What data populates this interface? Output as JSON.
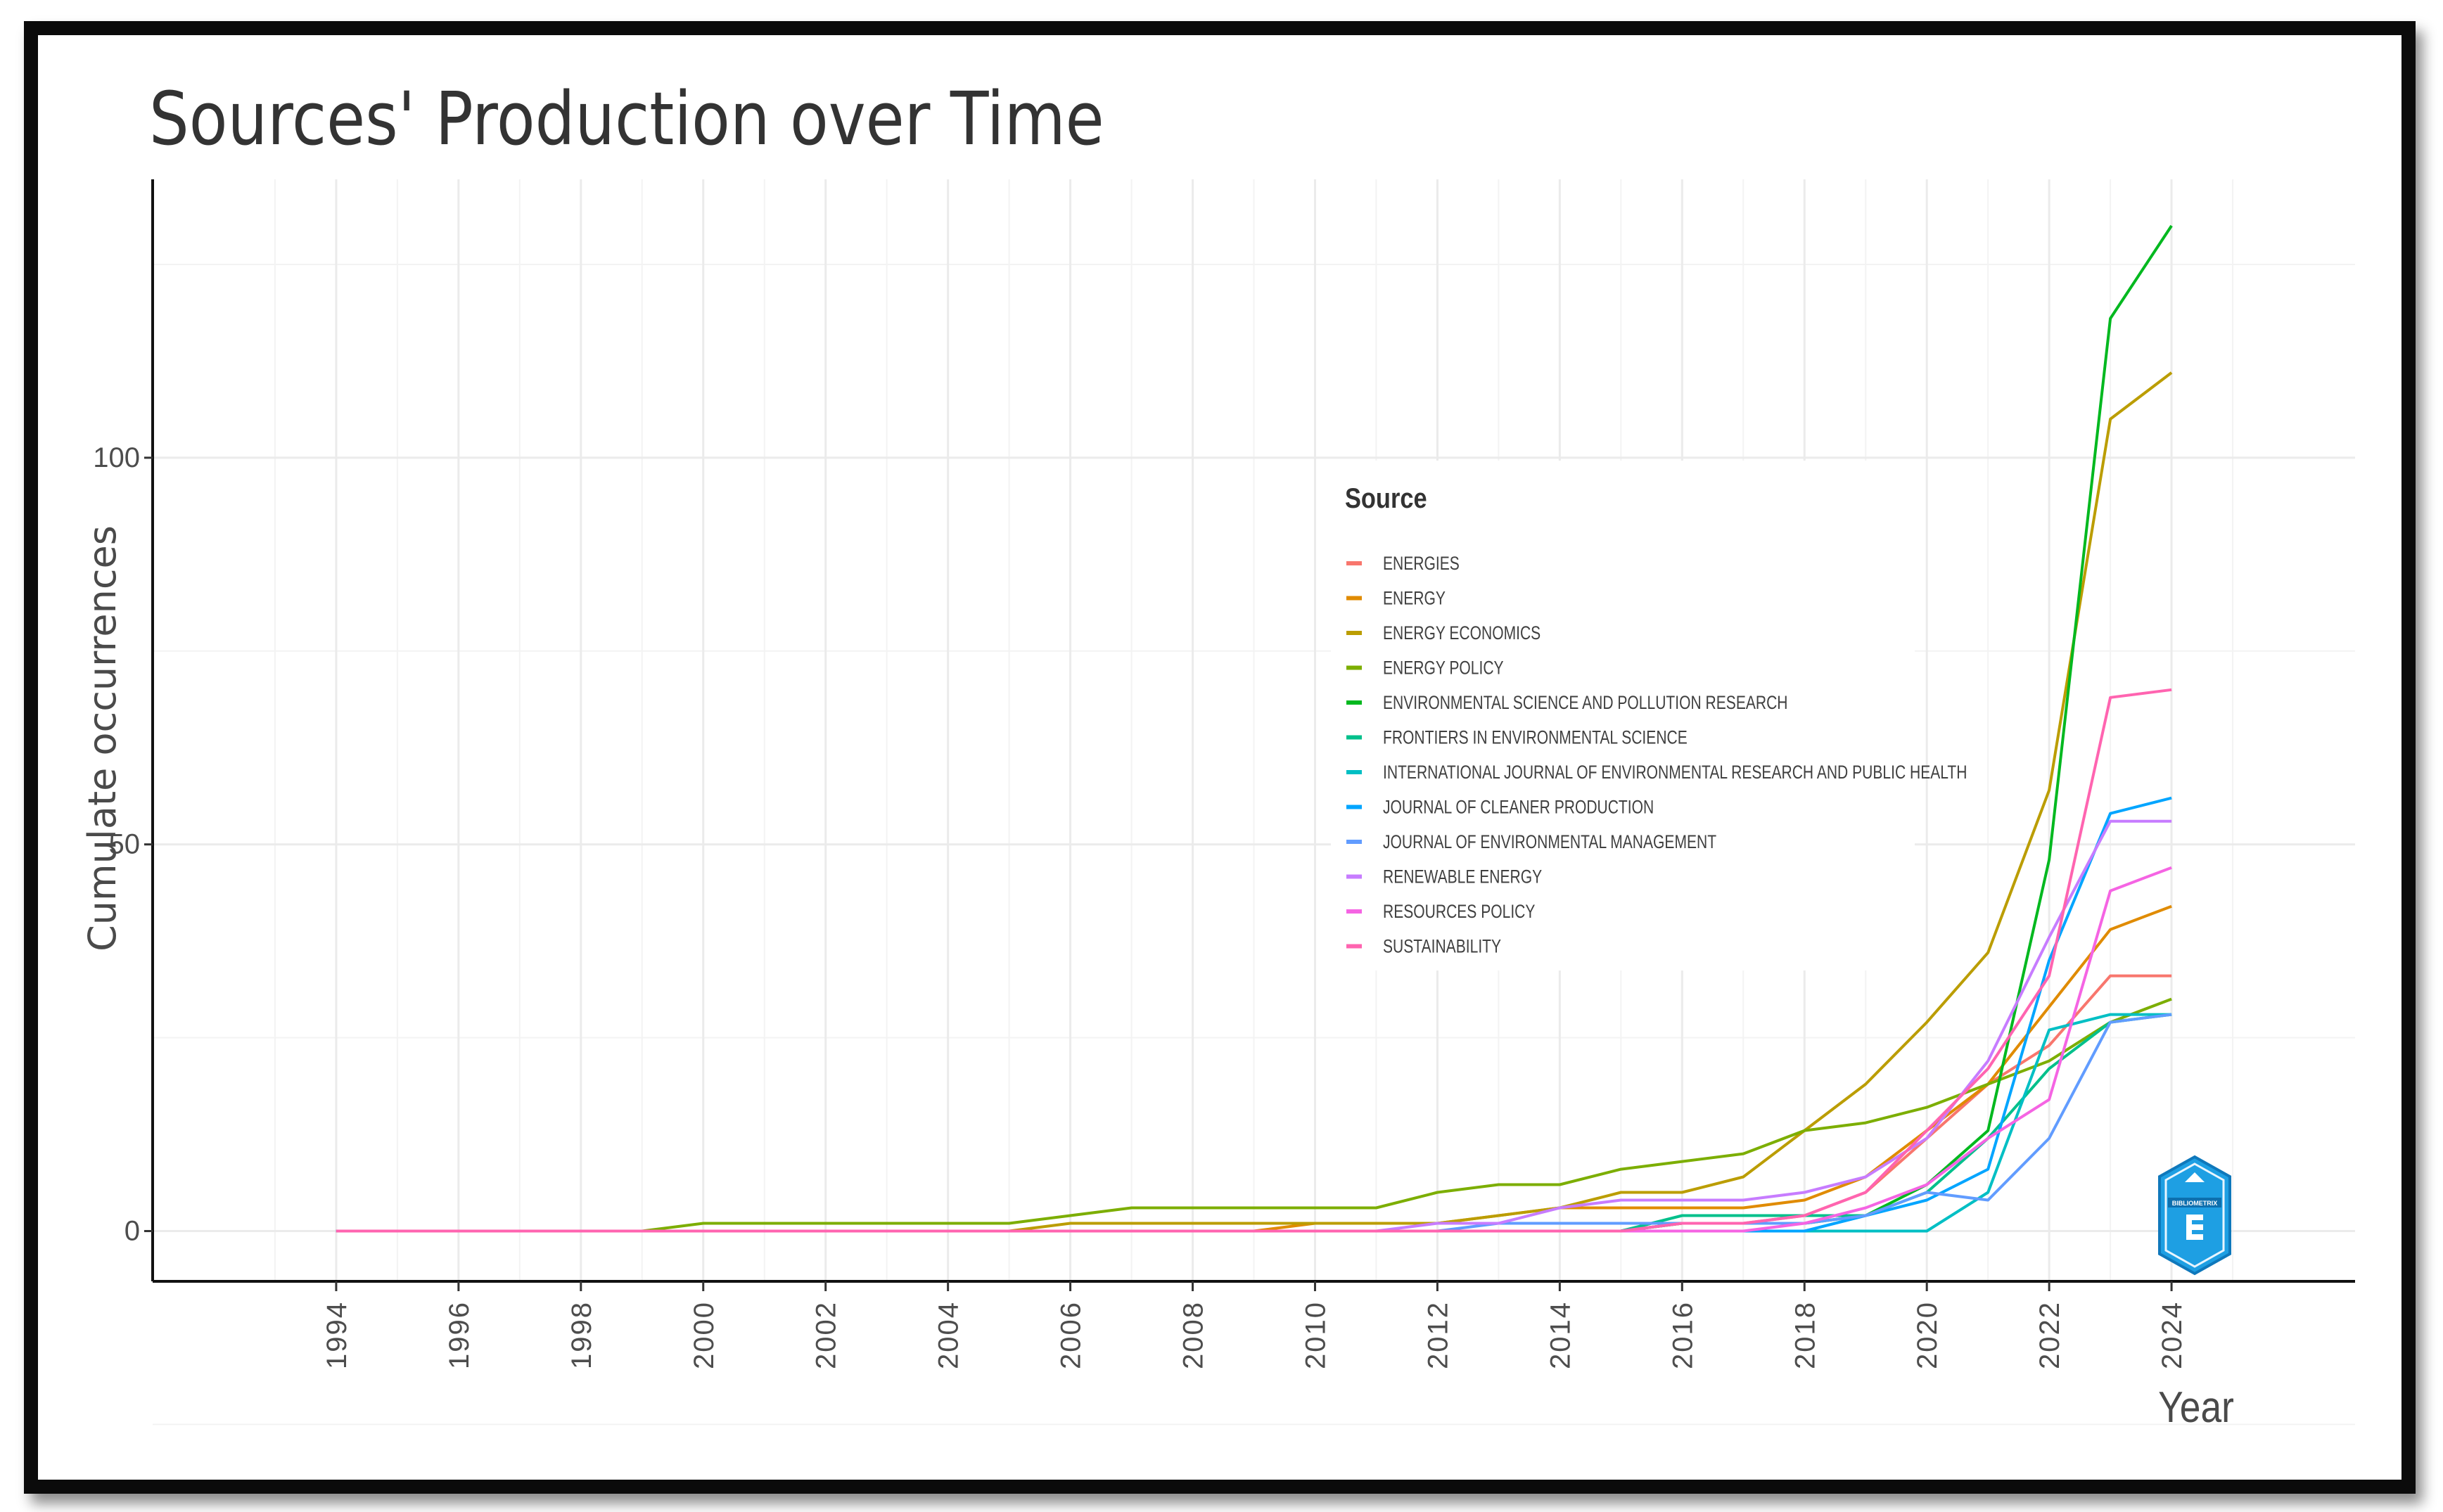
{
  "chart_data": {
    "type": "line",
    "title": "Sources' Production over Time",
    "xlabel": "Year",
    "ylabel": "Cumulate occurrences",
    "xlim": [
      1991,
      2027
    ],
    "ylim": [
      -6.5,
      136
    ],
    "x_ticks": [
      1994,
      1996,
      1998,
      2000,
      2002,
      2004,
      2006,
      2008,
      2010,
      2012,
      2014,
      2016,
      2018,
      2020,
      2022,
      2024
    ],
    "x_tick_labels": [
      "1994",
      "1996",
      "1998",
      "2000",
      "2002",
      "2004",
      "2006",
      "2008",
      "2010",
      "2012",
      "2014",
      "2016",
      "2018",
      "2020",
      "2022",
      "2024"
    ],
    "y_ticks": [
      0,
      50,
      100
    ],
    "y_tick_labels": [
      "0",
      "50",
      "100"
    ],
    "grid": true,
    "legend_title": "Source",
    "legend_position": "center-right",
    "x": [
      1994,
      1995,
      1996,
      1997,
      1998,
      1999,
      2000,
      2001,
      2002,
      2003,
      2004,
      2005,
      2006,
      2007,
      2008,
      2009,
      2010,
      2011,
      2012,
      2013,
      2014,
      2015,
      2016,
      2017,
      2018,
      2019,
      2020,
      2021,
      2022,
      2023,
      2024
    ],
    "series": [
      {
        "name": "ENERGIES",
        "color": "#F8766D",
        "values": [
          0,
          0,
          0,
          0,
          0,
          0,
          0,
          0,
          0,
          0,
          0,
          0,
          0,
          0,
          0,
          0,
          0,
          0,
          0,
          0,
          0,
          0,
          1,
          1,
          2,
          5,
          12,
          19,
          24,
          33,
          33
        ]
      },
      {
        "name": "ENERGY",
        "color": "#E08B00",
        "values": [
          0,
          0,
          0,
          0,
          0,
          0,
          0,
          0,
          0,
          0,
          0,
          0,
          0,
          0,
          0,
          0,
          1,
          1,
          1,
          2,
          3,
          3,
          3,
          3,
          4,
          7,
          13,
          19,
          29,
          39,
          42
        ]
      },
      {
        "name": "ENERGY ECONOMICS",
        "color": "#BB9D00",
        "values": [
          0,
          0,
          0,
          0,
          0,
          0,
          0,
          0,
          0,
          0,
          0,
          0,
          1,
          1,
          1,
          1,
          1,
          1,
          1,
          2,
          3,
          5,
          5,
          7,
          13,
          19,
          27,
          36,
          57,
          105,
          111
        ]
      },
      {
        "name": "ENERGY POLICY",
        "color": "#7CAE00",
        "values": [
          0,
          0,
          0,
          0,
          0,
          0,
          1,
          1,
          1,
          1,
          1,
          1,
          2,
          3,
          3,
          3,
          3,
          3,
          5,
          6,
          6,
          8,
          9,
          10,
          13,
          14,
          16,
          19,
          22,
          27,
          30
        ]
      },
      {
        "name": "ENVIRONMENTAL SCIENCE AND POLLUTION RESEARCH",
        "color": "#00B81F",
        "values": [
          0,
          0,
          0,
          0,
          0,
          0,
          0,
          0,
          0,
          0,
          0,
          0,
          0,
          0,
          0,
          0,
          0,
          0,
          0,
          0,
          0,
          0,
          1,
          1,
          1,
          2,
          6,
          13,
          48,
          118,
          130
        ]
      },
      {
        "name": "FRONTIERS IN ENVIRONMENTAL SCIENCE",
        "color": "#00C08B",
        "values": [
          0,
          0,
          0,
          0,
          0,
          0,
          0,
          0,
          0,
          0,
          0,
          0,
          0,
          0,
          0,
          0,
          0,
          0,
          0,
          0,
          0,
          0,
          2,
          2,
          2,
          2,
          5,
          12,
          21,
          27,
          28
        ]
      },
      {
        "name": "INTERNATIONAL JOURNAL OF ENVIRONMENTAL RESEARCH AND PUBLIC HEALTH",
        "color": "#00BFC4",
        "values": [
          0,
          0,
          0,
          0,
          0,
          0,
          0,
          0,
          0,
          0,
          0,
          0,
          0,
          0,
          0,
          0,
          0,
          0,
          0,
          0,
          0,
          0,
          0,
          0,
          0,
          0,
          0,
          5,
          26,
          28,
          28
        ]
      },
      {
        "name": "JOURNAL OF CLEANER PRODUCTION",
        "color": "#00A5FF",
        "values": [
          0,
          0,
          0,
          0,
          0,
          0,
          0,
          0,
          0,
          0,
          0,
          0,
          0,
          0,
          0,
          0,
          0,
          0,
          0,
          0,
          0,
          0,
          0,
          0,
          0,
          2,
          4,
          8,
          35,
          54,
          56
        ]
      },
      {
        "name": "JOURNAL OF ENVIRONMENTAL MANAGEMENT",
        "color": "#619CFF",
        "values": [
          0,
          0,
          0,
          0,
          0,
          0,
          0,
          0,
          0,
          0,
          0,
          0,
          0,
          0,
          0,
          0,
          0,
          0,
          0,
          1,
          1,
          1,
          1,
          1,
          1,
          2,
          5,
          4,
          12,
          27,
          28
        ]
      },
      {
        "name": "RENEWABLE ENERGY",
        "color": "#C77CFF",
        "values": [
          0,
          0,
          0,
          0,
          0,
          0,
          0,
          0,
          0,
          0,
          0,
          0,
          0,
          0,
          0,
          0,
          0,
          0,
          1,
          1,
          3,
          4,
          4,
          4,
          5,
          7,
          12,
          22,
          38,
          53,
          53
        ]
      },
      {
        "name": "RESOURCES POLICY",
        "color": "#F564E3",
        "values": [
          0,
          0,
          0,
          0,
          0,
          0,
          0,
          0,
          0,
          0,
          0,
          0,
          0,
          0,
          0,
          0,
          0,
          0,
          0,
          0,
          0,
          0,
          0,
          0,
          1,
          3,
          6,
          12,
          17,
          44,
          47
        ]
      },
      {
        "name": "SUSTAINABILITY",
        "color": "#FF64B0",
        "values": [
          0,
          0,
          0,
          0,
          0,
          0,
          0,
          0,
          0,
          0,
          0,
          0,
          0,
          0,
          0,
          0,
          0,
          0,
          0,
          0,
          0,
          0,
          1,
          1,
          2,
          5,
          13,
          21,
          33,
          69,
          70
        ]
      }
    ]
  },
  "logo": {
    "icon": "bibliometrix-logo-icon",
    "color": "#1e9fe3",
    "text": "BIBLIOMETRIX"
  }
}
